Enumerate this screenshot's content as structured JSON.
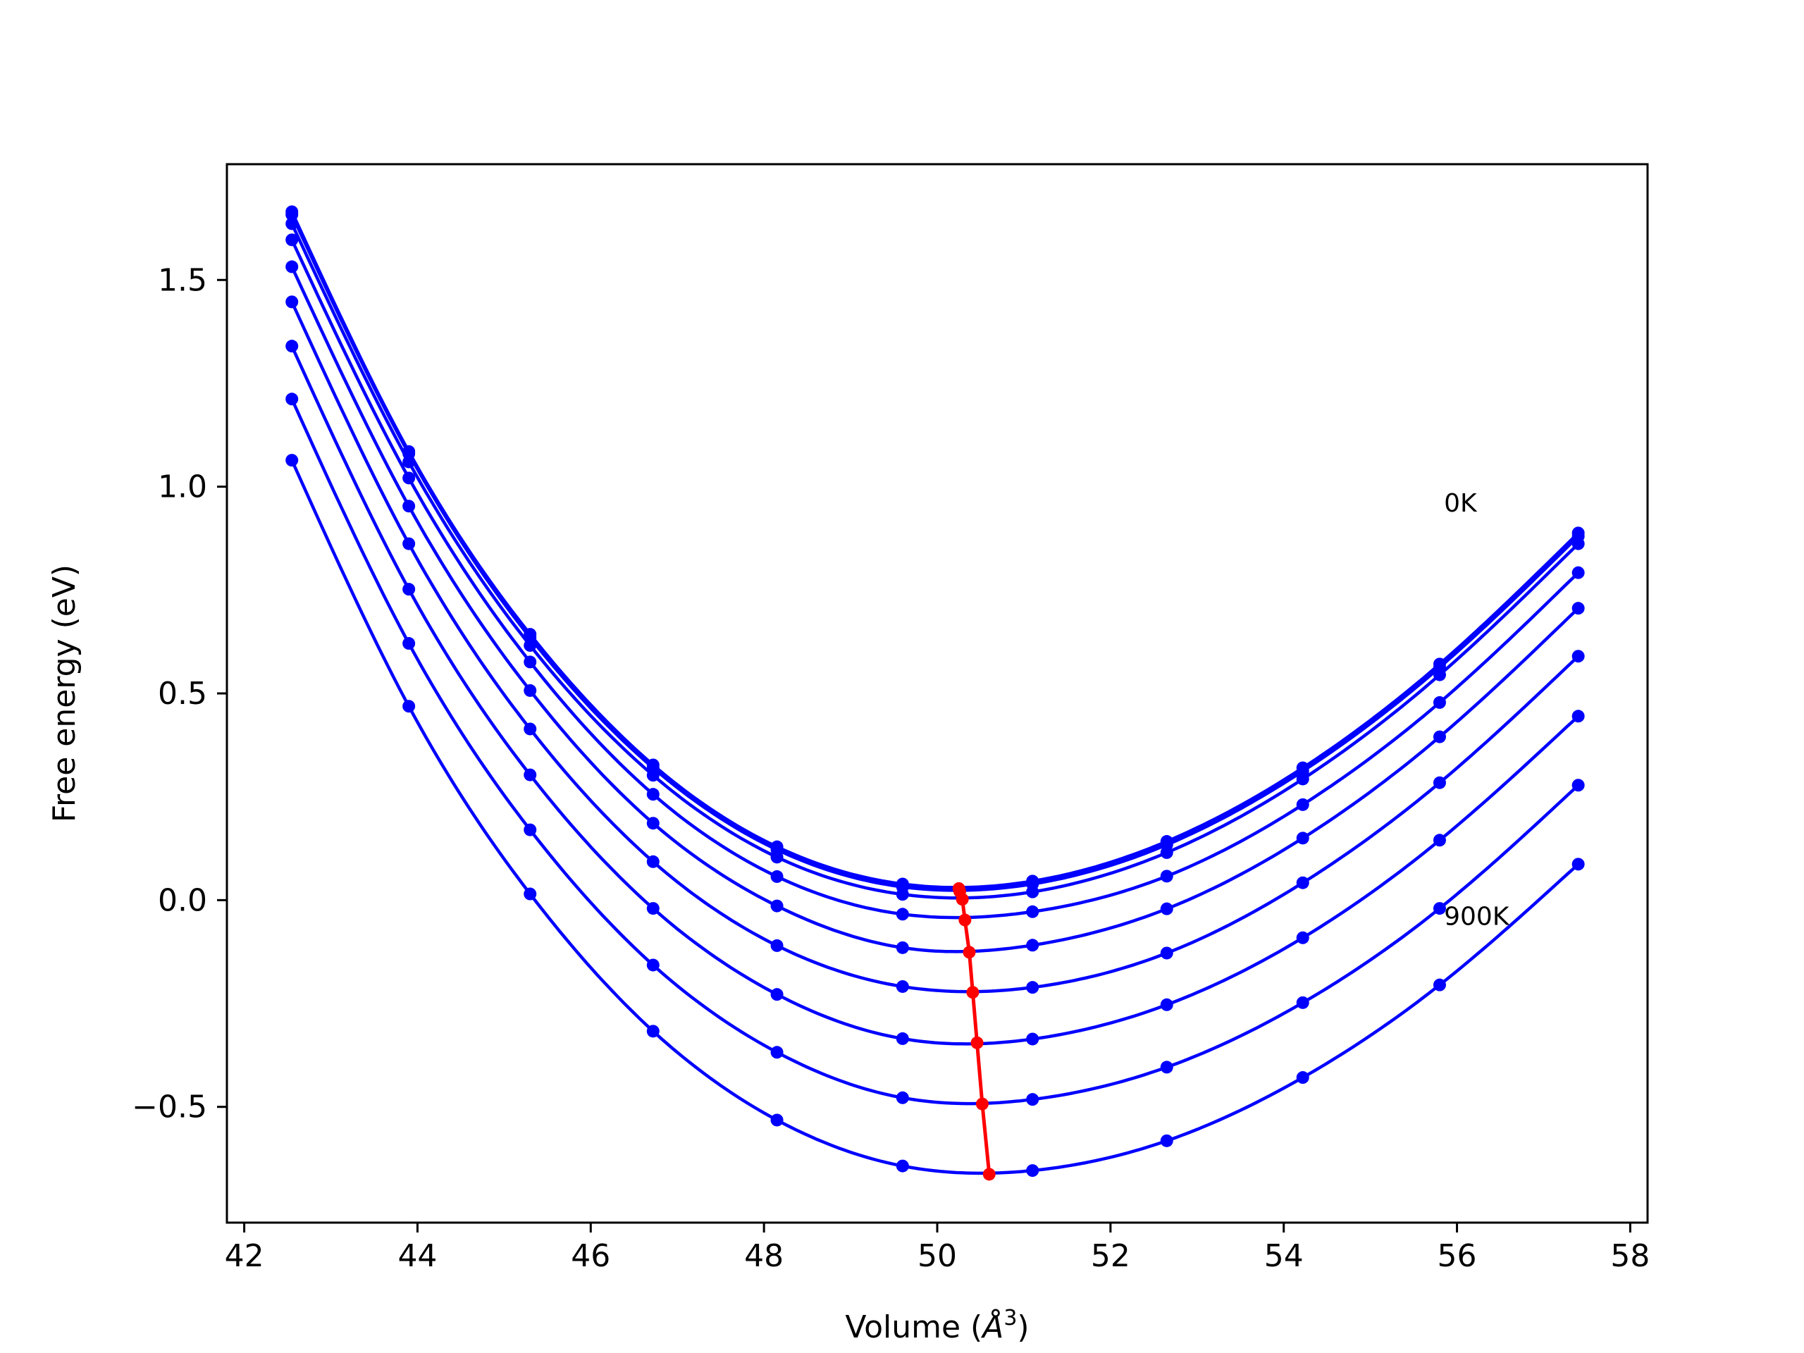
{
  "chart_data": {
    "type": "line",
    "title": "",
    "xlabel": "Volume (",
    "xlabel_sym": "Å",
    "xlabel_sup": "3",
    "xlabel_close": ")",
    "ylabel": "Free energy (eV)",
    "xlim": [
      41.8,
      58.2
    ],
    "ylim": [
      -0.78,
      1.78
    ],
    "grid": false,
    "xticks": [
      42,
      44,
      46,
      48,
      50,
      52,
      54,
      56,
      58
    ],
    "xtick_labels": [
      "42",
      "44",
      "46",
      "48",
      "50",
      "52",
      "54",
      "56",
      "58"
    ],
    "yticks": [
      -0.5,
      0.0,
      0.5,
      1.0,
      1.5
    ],
    "ytick_labels": [
      "−0.5",
      "0.0",
      "0.5",
      "1.0",
      "1.5"
    ],
    "annotations": [
      {
        "text": "0K",
        "x": 55.85,
        "y": 0.94
      },
      {
        "text": "900K",
        "x": 55.85,
        "y": -0.06
      }
    ],
    "x": [
      42.55,
      43.9,
      45.3,
      46.72,
      48.15,
      49.6,
      51.1,
      52.65,
      54.22,
      55.8,
      57.4
    ],
    "series": [
      {
        "color": "#0000ff",
        "values": [
          1.665,
          1.085,
          0.643,
          0.327,
          0.129,
          0.039,
          0.046,
          0.142,
          0.32,
          0.571,
          0.888
        ]
      },
      {
        "color": "#0000ff",
        "values": [
          1.658,
          1.08,
          0.635,
          0.32,
          0.122,
          0.032,
          0.039,
          0.134,
          0.312,
          0.563,
          0.88
        ]
      },
      {
        "color": "#0000ff",
        "values": [
          1.636,
          1.06,
          0.616,
          0.302,
          0.104,
          0.014,
          0.02,
          0.115,
          0.293,
          0.545,
          0.862
        ]
      },
      {
        "color": "#0000ff",
        "values": [
          1.597,
          1.021,
          0.576,
          0.256,
          0.057,
          -0.034,
          -0.028,
          0.058,
          0.231,
          0.478,
          0.792
        ]
      },
      {
        "color": "#0000ff",
        "values": [
          1.532,
          0.953,
          0.507,
          0.186,
          -0.014,
          -0.115,
          -0.109,
          -0.021,
          0.15,
          0.395,
          0.706
        ]
      },
      {
        "color": "#0000ff",
        "values": [
          1.447,
          0.862,
          0.414,
          0.093,
          -0.11,
          -0.209,
          -0.211,
          -0.128,
          0.042,
          0.284,
          0.59
        ]
      },
      {
        "color": "#0000ff",
        "values": [
          1.34,
          0.752,
          0.303,
          -0.02,
          -0.228,
          -0.335,
          -0.336,
          -0.253,
          -0.091,
          0.145,
          0.445
        ]
      },
      {
        "color": "#0000ff",
        "values": [
          1.212,
          0.621,
          0.17,
          -0.157,
          -0.368,
          -0.478,
          -0.482,
          -0.404,
          -0.248,
          -0.02,
          0.278
        ]
      },
      {
        "color": "#0000ff",
        "values": [
          1.064,
          0.469,
          0.015,
          -0.317,
          -0.532,
          -0.643,
          -0.654,
          -0.582,
          -0.429,
          -0.205,
          0.087
        ]
      }
    ],
    "minima": {
      "color": "#ff0000",
      "x": [
        50.25,
        50.26,
        50.29,
        50.32,
        50.37,
        50.41,
        50.46,
        50.52,
        50.6
      ],
      "y": [
        0.028,
        0.021,
        0.002,
        -0.048,
        -0.126,
        -0.223,
        -0.345,
        -0.493,
        -0.663
      ]
    }
  }
}
